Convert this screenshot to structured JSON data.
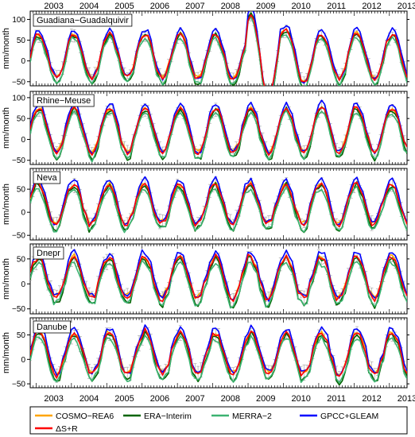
{
  "chart_data": {
    "type": "line",
    "years": [
      "2003",
      "2004",
      "2005",
      "2006",
      "2007",
      "2008",
      "2009",
      "2010",
      "2011",
      "2012",
      "2013"
    ],
    "x_start": "2002-11",
    "x_end": "2013-07",
    "ylabel": "mm/month",
    "grid": false,
    "legend_placement": "bottom",
    "series": [
      {
        "name": "COSMO−REA6",
        "color": "#ffa500"
      },
      {
        "name": "ERA−Interim",
        "color": "#006400"
      },
      {
        "name": "MERRA−2",
        "color": "#3cb371"
      },
      {
        "name": "GPCC+GLEAM",
        "color": "#0000ff"
      },
      {
        "name": "ΔS+R",
        "color": "#ff0000"
      }
    ],
    "panels": [
      {
        "name": "Guadiana−Guadalquivir",
        "yticks": [
          -50,
          0,
          50,
          100
        ],
        "ylim": [
          -60,
          120
        ],
        "amp": 52,
        "mean": 12,
        "phase": 0.0,
        "dev": {
          "2009": 1.9,
          "2010": 1.2
        }
      },
      {
        "name": "Rhine−Meuse",
        "yticks": [
          -50,
          0,
          50,
          100
        ],
        "ylim": [
          -60,
          115
        ],
        "amp": 52,
        "mean": 22,
        "phase": 0.0,
        "dev": {}
      },
      {
        "name": "Neva",
        "yticks": [
          -50,
          0,
          50
        ],
        "ylim": [
          -60,
          95
        ],
        "amp": 42,
        "mean": 18,
        "phase": 0.4,
        "dev": {}
      },
      {
        "name": "Dnepr",
        "yticks": [
          -50,
          0,
          50
        ],
        "ylim": [
          -60,
          80
        ],
        "amp": 40,
        "mean": 12,
        "phase": 0.2,
        "dev": {}
      },
      {
        "name": "Danube",
        "yticks": [
          -50,
          0,
          50
        ],
        "ylim": [
          -58,
          85
        ],
        "amp": 42,
        "mean": 12,
        "phase": 0.0,
        "dev": {}
      }
    ]
  }
}
